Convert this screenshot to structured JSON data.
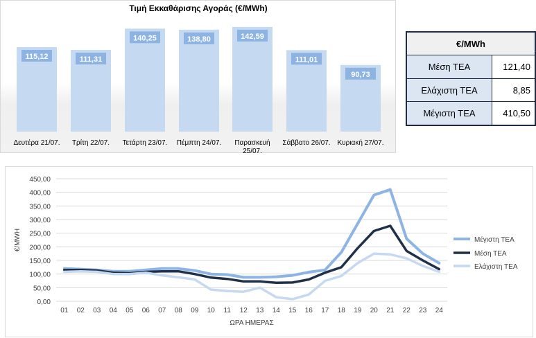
{
  "chart_data": [
    {
      "type": "bar",
      "title": "Τιμή Εκκαθάρισης Αγοράς (€/MWh)",
      "categories": [
        "Δευτέρα 21/07.",
        "Τρίτη 22/07.",
        "Τετάρτη 23/07.",
        "Πέμπτη 24/07.",
        "Παρασκευή 25/07.",
        "Σάββατο 26/07.",
        "Κυριακή 27/07."
      ],
      "category_lines": [
        [
          "Δευτέρα 21/07."
        ],
        [
          "Τρίτη 22/07."
        ],
        [
          "Τετάρτη 23/07."
        ],
        [
          "Πέμπτη 24/07."
        ],
        [
          "Παρασκευή",
          "25/07."
        ],
        [
          "Σάββατο 26/07."
        ],
        [
          "Κυριακή 27/07."
        ]
      ],
      "values": [
        115.12,
        111.31,
        140.25,
        138.8,
        142.59,
        111.01,
        90.73
      ],
      "value_labels": [
        "115,12",
        "111,31",
        "140,25",
        "138,80",
        "142,59",
        "111,01",
        "90,73"
      ],
      "ylim": [
        0,
        150
      ],
      "bar_color": "#c5d9f1",
      "label_color": "#8db3e2"
    },
    {
      "type": "table",
      "header": "€/MWh",
      "rows": [
        {
          "label": "Μέση ΤΕΑ",
          "value": "121,40"
        },
        {
          "label": "Ελάχιστη ΤΕΑ",
          "value": "8,85"
        },
        {
          "label": "Μέγιστη ΤΕΑ",
          "value": "410,50"
        }
      ]
    },
    {
      "type": "line",
      "xlabel": "ΩΡΑ ΗΜΕΡΑΣ",
      "ylabel": "€/MWH",
      "x": [
        "01",
        "02",
        "03",
        "04",
        "05",
        "06",
        "07",
        "08",
        "09",
        "10",
        "11",
        "12",
        "13",
        "14",
        "15",
        "16",
        "17",
        "18",
        "19",
        "20",
        "21",
        "22",
        "23",
        "24"
      ],
      "ylim": [
        0,
        450
      ],
      "y_ticks": [
        "0,00",
        "50,00",
        "100,00",
        "150,00",
        "200,00",
        "250,00",
        "300,00",
        "350,00",
        "400,00",
        "450,00"
      ],
      "legend_position": "right",
      "series": [
        {
          "name": "Μέγιστη ΤΕΑ",
          "color": "#8eb4e3",
          "width": 4,
          "values": [
            120,
            118,
            115,
            110,
            110,
            115,
            120,
            120,
            113,
            100,
            98,
            88,
            88,
            90,
            95,
            107,
            115,
            180,
            285,
            390,
            410,
            230,
            175,
            140
          ]
        },
        {
          "name": "Μέση ΤΕΑ",
          "color": "#1f3048",
          "width": 3.5,
          "values": [
            115,
            115,
            113,
            105,
            103,
            108,
            110,
            110,
            100,
            87,
            82,
            73,
            73,
            68,
            69,
            80,
            105,
            125,
            195,
            258,
            277,
            185,
            150,
            118
          ]
        },
        {
          "name": "Ελάχιστη ΤΕΑ",
          "color": "#c6d9f1",
          "width": 3.5,
          "values": [
            108,
            110,
            108,
            100,
            100,
            105,
            95,
            88,
            80,
            43,
            38,
            35,
            50,
            15,
            8,
            25,
            75,
            93,
            140,
            175,
            172,
            158,
            130,
            108
          ]
        }
      ]
    }
  ]
}
